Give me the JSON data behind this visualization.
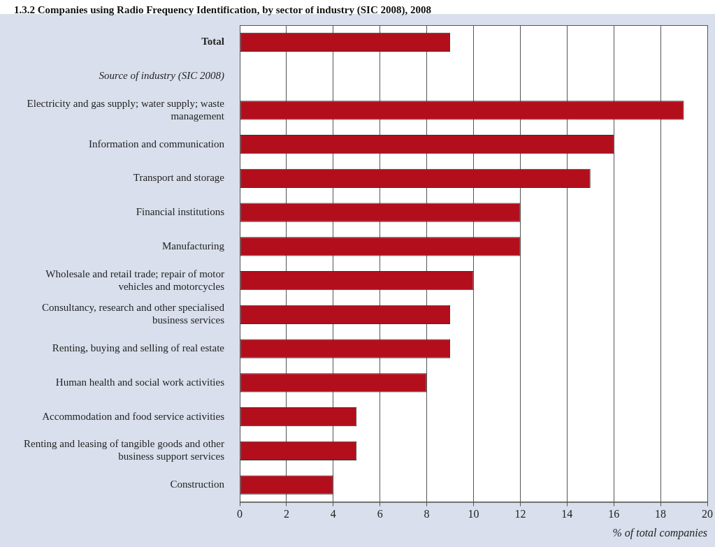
{
  "chart_data": {
    "type": "bar",
    "orientation": "horizontal",
    "title": "1.3.2 Companies using Radio Frequency Identification, by sector of industry (SIC 2008), 2008",
    "categories": [
      "Total",
      "Source of industry (SIC 2008)",
      "Electricity and gas supply; water supply; waste management",
      "Information and communication",
      "Transport and storage",
      "Financial institutions",
      "Manufacturing",
      "Wholesale and retail trade; repair of motor vehicles and motorcycles",
      "Consultancy, research and other specialised business services",
      "Renting, buying and selling of real estate",
      "Human health and social work activities",
      "Accommodation and food service activities",
      "Renting and leasing of tangible goods and other business support services",
      "Construction"
    ],
    "values": [
      9,
      null,
      19,
      16,
      15,
      12,
      12,
      10,
      9,
      9,
      8,
      5,
      5,
      4
    ],
    "color": "#b30e1c",
    "xlabel": "% of total companies",
    "xlim": [
      0,
      20
    ],
    "xticks": [
      0,
      2,
      4,
      6,
      8,
      10,
      12,
      14,
      16,
      18,
      20
    ],
    "grid": "x",
    "legend": false
  }
}
